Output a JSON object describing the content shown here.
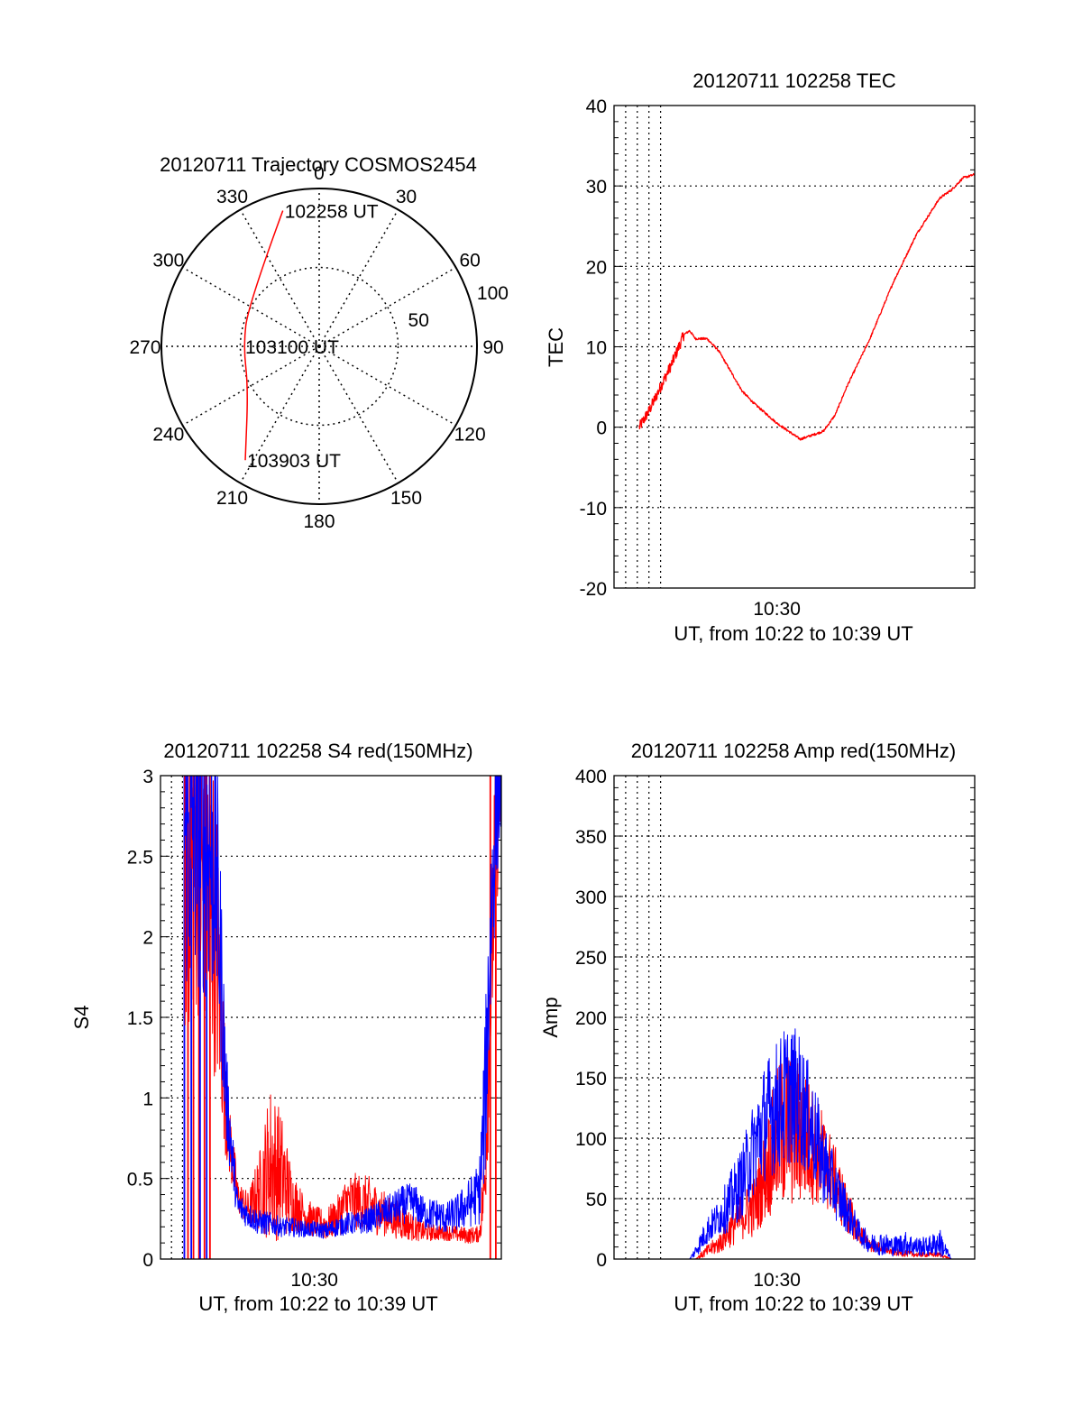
{
  "colors": {
    "red": "#ff0000",
    "blue": "#0000ff",
    "axis": "#000000",
    "grid": "#000000"
  },
  "chart_data": [
    {
      "id": "trajectory",
      "type": "polar",
      "title": "20120711 Trajectory COSMOS2454",
      "azimuth_ticks": [
        "0",
        "30",
        "60",
        "90",
        "120",
        "150",
        "180",
        "210",
        "240",
        "270",
        "300",
        "330"
      ],
      "radial_ticks": [
        "50",
        "100"
      ],
      "rlim": [
        0,
        100
      ],
      "grid": true,
      "series": [
        {
          "color": "red",
          "points": [
            [
              345,
              89
            ],
            [
              300,
              52
            ],
            [
              270,
              48
            ],
            [
              240,
              52
            ],
            [
              213,
              86
            ]
          ]
        }
      ],
      "annotations": [
        {
          "text": "102258 UT",
          "az": 345,
          "r": 89
        },
        {
          "text": "103100 UT",
          "az": 270,
          "r": 48
        },
        {
          "text": "103903 UT",
          "az": 213,
          "r": 86
        }
      ]
    },
    {
      "id": "tec",
      "type": "line",
      "title": "20120711 102258 TEC",
      "xlabel": "UT, from 10:22 to 10:39 UT",
      "ylabel": "TEC",
      "xlim": [
        10.36,
        10.67
      ],
      "ylim": [
        -20,
        40
      ],
      "yticks": [
        "-20",
        "-10",
        "0",
        "10",
        "20",
        "30",
        "40"
      ],
      "xticks": [
        {
          "value": 10.5,
          "label": "10:30"
        }
      ],
      "grid": true,
      "series": [
        {
          "color": "red",
          "noise": 0.35,
          "x": [
            10.3817,
            10.39,
            10.4,
            10.41,
            10.42,
            10.425,
            10.43,
            10.44,
            10.45,
            10.46,
            10.47,
            10.48,
            10.5,
            10.52,
            10.54,
            10.55,
            10.56,
            10.58,
            10.6,
            10.62,
            10.64,
            10.65,
            10.66,
            10.6717
          ],
          "y": [
            0,
            2,
            5,
            8,
            11.5,
            12,
            11,
            11,
            9.5,
            7,
            4.5,
            3,
            0.5,
            -1.5,
            -0.5,
            1.5,
            5,
            11,
            18,
            24,
            28.5,
            29.5,
            31,
            31.5
          ]
        }
      ]
    },
    {
      "id": "s4",
      "type": "line",
      "title": "20120711 102258 S4 red(150MHz)",
      "xlabel": "UT, from 10:22 to 10:39 UT",
      "ylabel": "S4",
      "xlim": [
        10.36,
        10.67
      ],
      "ylim": [
        0,
        3
      ],
      "yticks": [
        "0",
        "0.5",
        "1",
        "1.5",
        "2",
        "2.5",
        "3"
      ],
      "xticks": [
        {
          "value": 10.5,
          "label": "10:30"
        }
      ],
      "grid": true,
      "series": [
        {
          "color": "red",
          "x": [
            10.3817,
            10.39,
            10.4,
            10.41,
            10.415,
            10.42,
            10.43,
            10.44,
            10.45,
            10.46,
            10.47,
            10.48,
            10.49,
            10.5,
            10.51,
            10.52,
            10.53,
            10.54,
            10.55,
            10.56,
            10.57,
            10.58,
            10.59,
            10.6,
            10.61,
            10.62,
            10.63,
            10.64,
            10.65,
            10.655,
            10.66,
            10.665,
            10.6717
          ],
          "y": [
            2.0,
            2.2,
            2.1,
            1.8,
            1.3,
            0.8,
            0.35,
            0.28,
            0.35,
            0.45,
            0.4,
            0.3,
            0.25,
            0.2,
            0.18,
            0.22,
            0.3,
            0.3,
            0.28,
            0.25,
            0.22,
            0.2,
            0.17,
            0.15,
            0.15,
            0.15,
            0.14,
            0.13,
            0.14,
            0.4,
            1.4,
            2.5,
            3.0
          ],
          "spread": [
            1.0,
            1.0,
            1.0,
            1.0,
            0.6,
            0.3,
            0.12,
            0.1,
            0.25,
            0.5,
            0.4,
            0.2,
            0.12,
            0.1,
            0.1,
            0.12,
            0.18,
            0.18,
            0.18,
            0.15,
            0.12,
            0.12,
            0.08,
            0.06,
            0.05,
            0.05,
            0.05,
            0.05,
            0.05,
            0.3,
            0.6,
            0.6,
            0.3
          ]
        },
        {
          "color": "blue",
          "x": [
            10.3817,
            10.39,
            10.4,
            10.41,
            10.415,
            10.42,
            10.43,
            10.44,
            10.45,
            10.46,
            10.47,
            10.48,
            10.49,
            10.5,
            10.51,
            10.52,
            10.53,
            10.54,
            10.55,
            10.56,
            10.57,
            10.58,
            10.59,
            10.6,
            10.61,
            10.62,
            10.63,
            10.64,
            10.65,
            10.655,
            10.66,
            10.665,
            10.6717
          ],
          "y": [
            2.3,
            2.4,
            2.3,
            2.2,
            1.6,
            0.9,
            0.3,
            0.25,
            0.2,
            0.2,
            0.18,
            0.18,
            0.17,
            0.17,
            0.16,
            0.18,
            0.2,
            0.2,
            0.22,
            0.25,
            0.28,
            0.3,
            0.32,
            0.25,
            0.25,
            0.22,
            0.25,
            0.3,
            0.35,
            0.8,
            1.8,
            2.6,
            3.0
          ],
          "spread": [
            1.0,
            1.0,
            1.0,
            0.9,
            0.6,
            0.3,
            0.1,
            0.08,
            0.08,
            0.07,
            0.06,
            0.06,
            0.05,
            0.05,
            0.05,
            0.06,
            0.07,
            0.07,
            0.08,
            0.09,
            0.1,
            0.12,
            0.12,
            0.1,
            0.1,
            0.1,
            0.12,
            0.15,
            0.2,
            0.5,
            0.7,
            0.5,
            0.3
          ]
        }
      ],
      "spikes": [
        {
          "color": "red",
          "x": [
            10.3817,
            10.385,
            10.39,
            10.395,
            10.4,
            10.405,
            10.66,
            10.665
          ]
        },
        {
          "color": "blue",
          "x": [
            10.3817,
            10.388,
            10.396,
            10.402
          ]
        }
      ]
    },
    {
      "id": "amp",
      "type": "line",
      "title": "20120711 102258 Amp red(150MHz)",
      "xlabel": "UT, from 10:22 to 10:39 UT",
      "ylabel": "Amp",
      "xlim": [
        10.36,
        10.67
      ],
      "ylim": [
        0,
        400
      ],
      "yticks": [
        "0",
        "50",
        "100",
        "150",
        "200",
        "250",
        "300",
        "350",
        "400"
      ],
      "xticks": [
        {
          "value": 10.5,
          "label": "10:30"
        }
      ],
      "grid": true,
      "series": [
        {
          "color": "red",
          "x": [
            10.3817,
            10.43,
            10.44,
            10.45,
            10.46,
            10.47,
            10.48,
            10.49,
            10.5,
            10.51,
            10.52,
            10.53,
            10.54,
            10.55,
            10.56,
            10.57,
            10.58,
            10.59,
            10.6,
            10.61,
            10.62,
            10.63,
            10.64,
            10.65,
            10.6717
          ],
          "y": [
            0,
            0,
            5,
            10,
            20,
            30,
            35,
            60,
            80,
            90,
            85,
            80,
            70,
            55,
            35,
            20,
            10,
            8,
            5,
            4,
            3,
            3,
            3,
            0,
            0
          ],
          "spread": [
            0,
            0,
            5,
            8,
            15,
            20,
            25,
            40,
            60,
            70,
            60,
            50,
            40,
            30,
            20,
            10,
            6,
            4,
            3,
            3,
            2,
            2,
            2,
            0,
            0
          ]
        },
        {
          "color": "blue",
          "x": [
            10.3817,
            10.425,
            10.43,
            10.44,
            10.45,
            10.46,
            10.47,
            10.48,
            10.49,
            10.5,
            10.51,
            10.52,
            10.53,
            10.54,
            10.55,
            10.56,
            10.57,
            10.58,
            10.59,
            10.6,
            10.61,
            10.62,
            10.63,
            10.64,
            10.65,
            10.6717
          ],
          "y": [
            0,
            0,
            5,
            20,
            30,
            40,
            55,
            80,
            100,
            110,
            120,
            115,
            95,
            70,
            50,
            35,
            20,
            10,
            10,
            8,
            10,
            8,
            8,
            10,
            0,
            0
          ],
          "spread": [
            0,
            0,
            5,
            12,
            15,
            25,
            30,
            40,
            50,
            55,
            60,
            55,
            45,
            35,
            25,
            18,
            10,
            8,
            10,
            8,
            10,
            8,
            8,
            12,
            0,
            0
          ]
        }
      ]
    }
  ]
}
